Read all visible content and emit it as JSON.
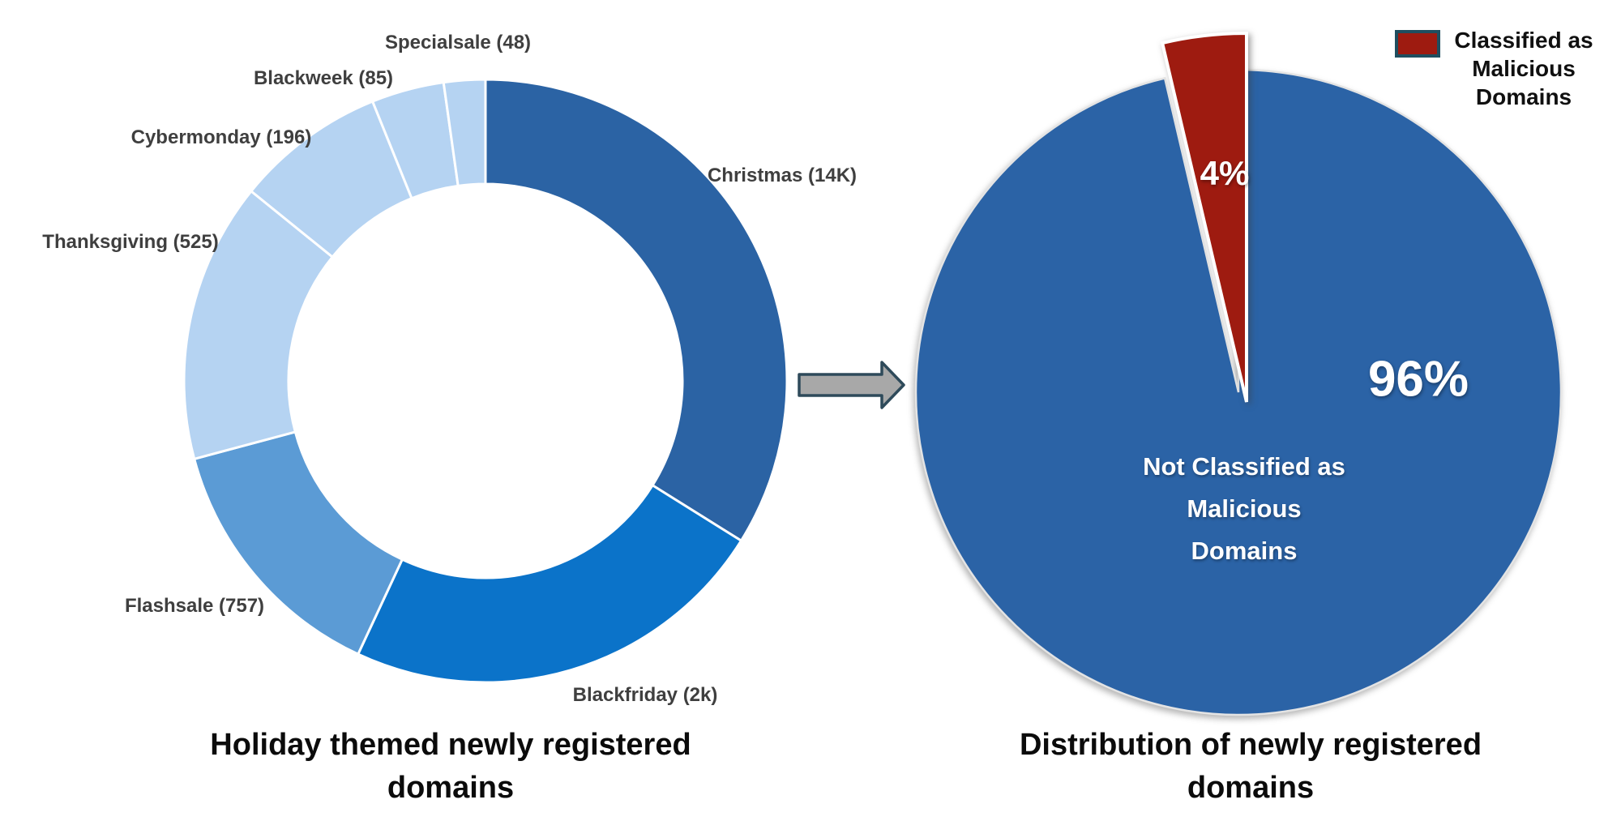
{
  "page": {
    "background": "#ffffff"
  },
  "arrow": {
    "fill": "#a8a8a8",
    "stroke": "#2e4a5a"
  },
  "chart_data": [
    {
      "id": "holiday-donut",
      "type": "pie",
      "subtype": "donut",
      "title": "Holiday themed newly registered domains",
      "legend_position": "none",
      "grid": false,
      "categories": [
        "Christmas",
        "Blackfriday",
        "Flashsale",
        "Thanksgiving",
        "Cybermonday",
        "Blackweek",
        "Specialsale"
      ],
      "values": [
        14000,
        2000,
        757,
        525,
        196,
        85,
        48
      ],
      "separator_color": "#ffffff",
      "segments": [
        {
          "name": "christmas",
          "label": "Christmas (14K)",
          "value": 14000,
          "color": "#2b63a4",
          "start_angle": 0,
          "end_angle": 122
        },
        {
          "name": "blackfriday",
          "label": "Blackfriday (2k)",
          "value": 2000,
          "color": "#0b73c9",
          "start_angle": 122,
          "end_angle": 205
        },
        {
          "name": "flashsale",
          "label": "Flashsale (757)",
          "value": 757,
          "color": "#5b9bd5",
          "start_angle": 205,
          "end_angle": 255
        },
        {
          "name": "thanksgiving",
          "label": "Thanksgiving (525)",
          "value": 525,
          "color": "#b5d3f2",
          "start_angle": 255,
          "end_angle": 309
        },
        {
          "name": "cybermonday",
          "label": "Cybermonday (196)",
          "value": 196,
          "color": "#b5d3f2",
          "start_angle": 309,
          "end_angle": 338
        },
        {
          "name": "blackweek",
          "label": "Blackweek (85)",
          "value": 85,
          "color": "#b5d3f2",
          "start_angle": 338,
          "end_angle": 352
        },
        {
          "name": "specialsale",
          "label": "Specialsale (48)",
          "value": 48,
          "color": "#b5d3f2",
          "start_angle": 352,
          "end_angle": 360
        }
      ]
    },
    {
      "id": "malicious-distribution-pie",
      "type": "pie",
      "title": "Distribution of newly registered domains",
      "legend_position": "top-right",
      "grid": false,
      "categories": [
        "Not Classified as Malicious Domains",
        "Classified as Malicious Domains"
      ],
      "values": [
        96,
        4
      ],
      "segments": [
        {
          "name": "not-classified",
          "label": "Not Classified as Malicious Domains",
          "label_lines": [
            "Not Classified as",
            "Malicious",
            "Domains"
          ],
          "pct_label": "96%",
          "value": 96,
          "color": "#2b63a6",
          "start_angle": 0,
          "end_angle": 346.8,
          "exploded": false
        },
        {
          "name": "classified-malicious",
          "label": "Classified as Malicious Domains",
          "pct_label": "4%",
          "value": 4,
          "color": "#9e1b10",
          "start_angle": 346.8,
          "end_angle": 360,
          "exploded": true
        }
      ],
      "legend": {
        "label": "Classified as Malicious Domains",
        "label_lines": [
          "Classified as",
          "Malicious",
          "Domains"
        ],
        "swatch_color": "#9e1b10",
        "swatch_border": "#1f4e5f"
      }
    }
  ]
}
